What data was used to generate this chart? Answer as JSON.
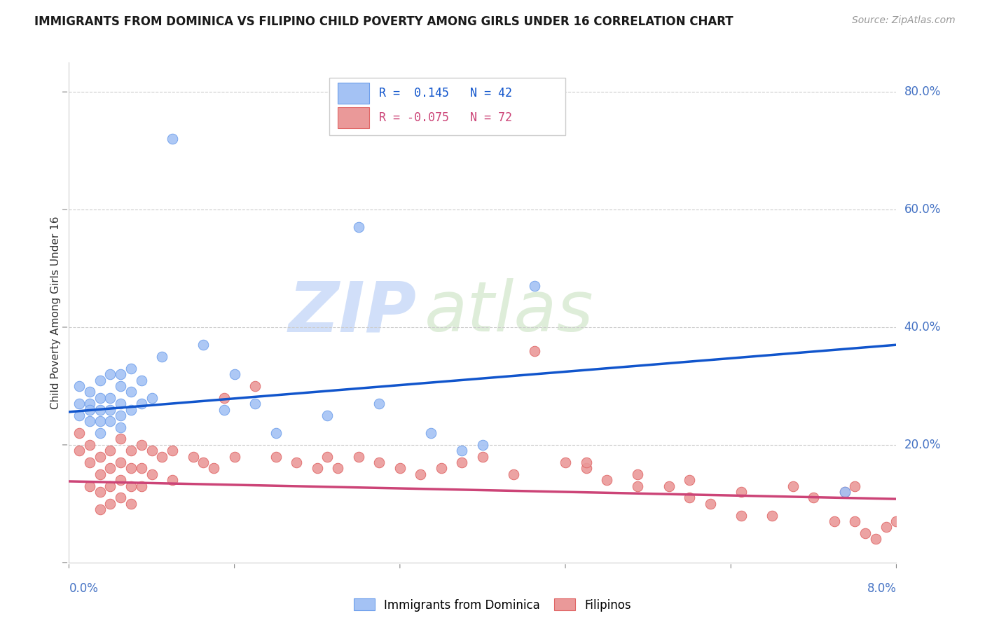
{
  "title": "IMMIGRANTS FROM DOMINICA VS FILIPINO CHILD POVERTY AMONG GIRLS UNDER 16 CORRELATION CHART",
  "source": "Source: ZipAtlas.com",
  "ylabel": "Child Poverty Among Girls Under 16",
  "xlim": [
    0.0,
    0.08
  ],
  "ylim": [
    0.0,
    0.85
  ],
  "blue_R": 0.145,
  "blue_N": 42,
  "pink_R": -0.075,
  "pink_N": 72,
  "blue_color": "#a4c2f4",
  "pink_color": "#ea9999",
  "blue_edge_color": "#6d9eeb",
  "pink_edge_color": "#e06666",
  "blue_line_color": "#1155cc",
  "pink_line_color": "#cc4477",
  "legend_label_blue": "Immigrants from Dominica",
  "legend_label_pink": "Filipinos",
  "watermark_zip": "ZIP",
  "watermark_atlas": "atlas",
  "grid_vals": [
    0.2,
    0.4,
    0.6,
    0.8
  ],
  "blue_trend_y0": 0.256,
  "blue_trend_y1": 0.37,
  "pink_trend_y0": 0.138,
  "pink_trend_y1": 0.108,
  "blue_scatter_x": [
    0.001,
    0.001,
    0.001,
    0.002,
    0.002,
    0.002,
    0.002,
    0.003,
    0.003,
    0.003,
    0.003,
    0.003,
    0.004,
    0.004,
    0.004,
    0.004,
    0.005,
    0.005,
    0.005,
    0.005,
    0.005,
    0.006,
    0.006,
    0.006,
    0.007,
    0.007,
    0.008,
    0.009,
    0.01,
    0.013,
    0.015,
    0.016,
    0.018,
    0.02,
    0.025,
    0.028,
    0.03,
    0.035,
    0.038,
    0.04,
    0.045,
    0.075
  ],
  "blue_scatter_y": [
    0.27,
    0.25,
    0.3,
    0.29,
    0.27,
    0.26,
    0.24,
    0.31,
    0.28,
    0.26,
    0.24,
    0.22,
    0.32,
    0.28,
    0.26,
    0.24,
    0.32,
    0.3,
    0.27,
    0.25,
    0.23,
    0.33,
    0.29,
    0.26,
    0.31,
    0.27,
    0.28,
    0.35,
    0.72,
    0.37,
    0.26,
    0.32,
    0.27,
    0.22,
    0.25,
    0.57,
    0.27,
    0.22,
    0.19,
    0.2,
    0.47,
    0.12
  ],
  "pink_scatter_x": [
    0.001,
    0.001,
    0.002,
    0.002,
    0.002,
    0.003,
    0.003,
    0.003,
    0.003,
    0.004,
    0.004,
    0.004,
    0.004,
    0.005,
    0.005,
    0.005,
    0.005,
    0.006,
    0.006,
    0.006,
    0.006,
    0.007,
    0.007,
    0.007,
    0.008,
    0.008,
    0.009,
    0.01,
    0.01,
    0.012,
    0.013,
    0.014,
    0.015,
    0.016,
    0.018,
    0.02,
    0.022,
    0.024,
    0.025,
    0.026,
    0.028,
    0.03,
    0.032,
    0.034,
    0.036,
    0.038,
    0.04,
    0.043,
    0.045,
    0.048,
    0.05,
    0.052,
    0.055,
    0.058,
    0.06,
    0.062,
    0.065,
    0.068,
    0.05,
    0.055,
    0.06,
    0.065,
    0.07,
    0.072,
    0.074,
    0.075,
    0.076,
    0.077,
    0.078,
    0.079,
    0.08,
    0.076
  ],
  "pink_scatter_y": [
    0.22,
    0.19,
    0.2,
    0.17,
    0.13,
    0.18,
    0.15,
    0.12,
    0.09,
    0.19,
    0.16,
    0.13,
    0.1,
    0.21,
    0.17,
    0.14,
    0.11,
    0.19,
    0.16,
    0.13,
    0.1,
    0.2,
    0.16,
    0.13,
    0.19,
    0.15,
    0.18,
    0.19,
    0.14,
    0.18,
    0.17,
    0.16,
    0.28,
    0.18,
    0.3,
    0.18,
    0.17,
    0.16,
    0.18,
    0.16,
    0.18,
    0.17,
    0.16,
    0.15,
    0.16,
    0.17,
    0.18,
    0.15,
    0.36,
    0.17,
    0.16,
    0.14,
    0.15,
    0.13,
    0.14,
    0.1,
    0.12,
    0.08,
    0.17,
    0.13,
    0.11,
    0.08,
    0.13,
    0.11,
    0.07,
    0.12,
    0.07,
    0.05,
    0.04,
    0.06,
    0.07,
    0.13
  ]
}
